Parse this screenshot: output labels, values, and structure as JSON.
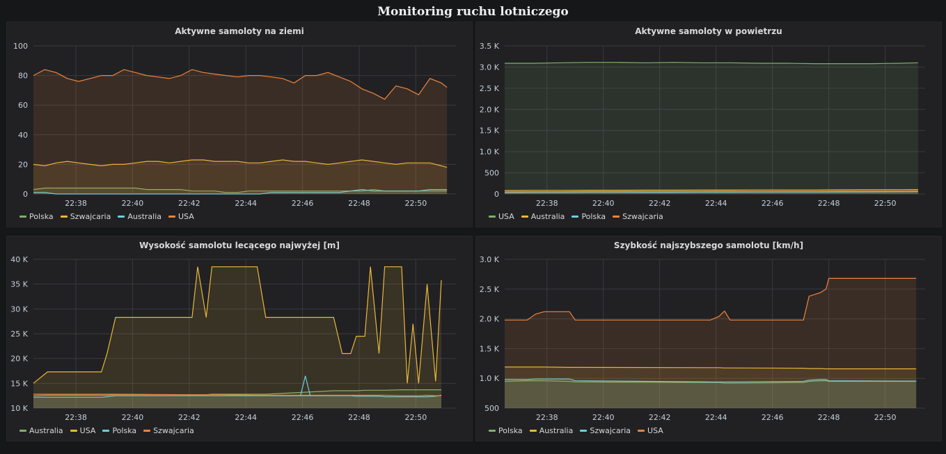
{
  "dashboard": {
    "title": "Monitoring ruchu lotniczego"
  },
  "chart_data": [
    {
      "type": "line",
      "title": "Aktywne samoloty na ziemi",
      "xlabel": "",
      "ylabel": "",
      "x": [
        "22:36:30",
        "22:36:54",
        "22:37:18",
        "22:37:42",
        "22:38:06",
        "22:38:30",
        "22:38:54",
        "22:39:18",
        "22:39:42",
        "22:40:06",
        "22:40:30",
        "22:40:54",
        "22:41:18",
        "22:41:42",
        "22:42:06",
        "22:42:30",
        "22:42:54",
        "22:43:18",
        "22:43:42",
        "22:44:06",
        "22:44:30",
        "22:44:54",
        "22:45:18",
        "22:45:42",
        "22:46:06",
        "22:46:30",
        "22:46:54",
        "22:47:18",
        "22:47:42",
        "22:48:06",
        "22:48:30",
        "22:48:54",
        "22:49:18",
        "22:49:42",
        "22:50:06",
        "22:50:30",
        "22:50:54",
        "22:51:06"
      ],
      "xticks": [
        "22:38",
        "22:40",
        "22:42",
        "22:44",
        "22:46",
        "22:48",
        "22:50"
      ],
      "xlim": [
        "22:36:30",
        "22:51:25"
      ],
      "ylim": [
        0,
        100
      ],
      "yticks": [
        0,
        20,
        40,
        60,
        80,
        100
      ],
      "ytick_labels": [
        "0",
        "20",
        "40",
        "60",
        "80",
        "100"
      ],
      "series": [
        {
          "name": "Polska",
          "color": "#7eb26d",
          "values": [
            3,
            4,
            4,
            4,
            4,
            4,
            4,
            4,
            4,
            4,
            3,
            3,
            3,
            3,
            2,
            2,
            2,
            1,
            1,
            2,
            2,
            2,
            2,
            2,
            2,
            2,
            2,
            2,
            2,
            2,
            3,
            2,
            2,
            2,
            2,
            2,
            2,
            2
          ]
        },
        {
          "name": "Szwajcaria",
          "color": "#eab839",
          "values": [
            20,
            19,
            21,
            22,
            21,
            20,
            19,
            20,
            20,
            21,
            22,
            22,
            21,
            22,
            23,
            23,
            22,
            22,
            22,
            21,
            21,
            22,
            23,
            22,
            22,
            21,
            20,
            21,
            22,
            23,
            22,
            21,
            20,
            21,
            21,
            21,
            19,
            18
          ]
        },
        {
          "name": "Australia",
          "color": "#6ed0e0",
          "values": [
            1,
            1,
            0,
            0,
            0,
            0,
            0,
            0,
            0,
            0,
            0,
            0,
            0,
            0,
            0,
            0,
            0,
            0,
            0,
            0,
            0,
            1,
            1,
            1,
            1,
            1,
            1,
            1,
            2,
            3,
            2,
            2,
            2,
            2,
            2,
            3,
            3,
            3
          ]
        },
        {
          "name": "USA",
          "color": "#ef843c",
          "values": [
            80,
            84,
            82,
            78,
            76,
            78,
            80,
            80,
            84,
            82,
            80,
            79,
            78,
            80,
            84,
            82,
            81,
            80,
            79,
            80,
            80,
            79,
            78,
            75,
            80,
            80,
            82,
            79,
            76,
            71,
            68,
            64,
            73,
            71,
            67,
            78,
            75,
            72
          ]
        }
      ]
    },
    {
      "type": "line",
      "title": "Aktywne samoloty w powietrzu",
      "xlabel": "",
      "ylabel": "",
      "x": [
        "22:36:30",
        "22:37:30",
        "22:38:30",
        "22:39:30",
        "22:40:30",
        "22:41:30",
        "22:42:30",
        "22:43:30",
        "22:44:30",
        "22:45:30",
        "22:46:30",
        "22:47:30",
        "22:48:30",
        "22:49:30",
        "22:50:30",
        "22:51:10"
      ],
      "xticks": [
        "22:38",
        "22:40",
        "22:42",
        "22:44",
        "22:46",
        "22:48",
        "22:50"
      ],
      "xlim": [
        "22:36:30",
        "22:51:25"
      ],
      "ylim": [
        0,
        3500
      ],
      "yticks": [
        0,
        500,
        1000,
        1500,
        2000,
        2500,
        3000,
        3500
      ],
      "ytick_labels": [
        "0",
        "500",
        "1.0 K",
        "1.5 K",
        "2.0 K",
        "2.5 K",
        "3.0 K",
        "3.5 K"
      ],
      "series": [
        {
          "name": "USA",
          "color": "#7eb26d",
          "values": [
            3090,
            3090,
            3100,
            3110,
            3110,
            3100,
            3110,
            3100,
            3100,
            3090,
            3090,
            3080,
            3080,
            3080,
            3090,
            3100
          ]
        },
        {
          "name": "Australia",
          "color": "#eab839",
          "values": [
            80,
            85,
            85,
            88,
            88,
            90,
            90,
            92,
            92,
            95,
            95,
            95,
            98,
            100,
            102,
            105
          ]
        },
        {
          "name": "Polska",
          "color": "#6ed0e0",
          "values": [
            30,
            35,
            35,
            38,
            38,
            40,
            40,
            42,
            42,
            45,
            45,
            45,
            48,
            50,
            52,
            55
          ]
        },
        {
          "name": "Szwajcaria",
          "color": "#ef843c",
          "values": [
            50,
            55,
            55,
            58,
            58,
            60,
            60,
            60,
            62,
            62,
            64,
            64,
            66,
            66,
            68,
            70
          ]
        }
      ]
    },
    {
      "type": "line",
      "title": "Wysokość samolotu lecącego najwyżej [m]",
      "xlabel": "",
      "ylabel": "",
      "x": [
        "22:36:30",
        "22:37:00",
        "22:38:54",
        "22:39:06",
        "22:39:24",
        "22:42:06",
        "22:42:18",
        "22:42:36",
        "22:42:48",
        "22:43:06",
        "22:44:24",
        "22:44:42",
        "22:47:06",
        "22:47:24",
        "22:47:42",
        "22:47:54",
        "22:48:12",
        "22:48:24",
        "22:48:42",
        "22:48:54",
        "22:49:30",
        "22:49:42",
        "22:49:54",
        "22:50:06",
        "22:50:24",
        "22:50:42",
        "22:50:54"
      ],
      "xticks": [
        "22:38",
        "22:40",
        "22:42",
        "22:44",
        "22:46",
        "22:48",
        "22:50"
      ],
      "xlim": [
        "22:36:30",
        "22:51:25"
      ],
      "ylim": [
        10000,
        40000
      ],
      "yticks": [
        10000,
        15000,
        20000,
        25000,
        30000,
        35000,
        40000
      ],
      "ytick_labels": [
        "10 K",
        "15 K",
        "20 K",
        "25 K",
        "30 K",
        "35 K",
        "40 K"
      ],
      "series": [
        {
          "name": "Australia",
          "color": "#7eb26d",
          "values": [
            12500,
            12600,
            12600,
            12600,
            12700,
            12700,
            12700,
            12700,
            12800,
            12800,
            12800,
            12800,
            13500,
            13500,
            13500,
            13500,
            13600,
            13600,
            13600,
            13600,
            13700,
            13700,
            13700,
            13700,
            13700,
            13700,
            13700
          ]
        },
        {
          "name": "USA",
          "color": "#eab839",
          "values": [
            15000,
            17300,
            17300,
            21000,
            28300,
            28300,
            38500,
            28300,
            38500,
            38500,
            38500,
            28300,
            28300,
            21000,
            21000,
            24500,
            24500,
            38500,
            21000,
            38500,
            38500,
            15000,
            27000,
            15000,
            35000,
            15400,
            35800
          ]
        },
        {
          "name": "Polska",
          "color": "#6ed0e0",
          "values": [
            12200,
            12200,
            12200,
            12300,
            12500,
            12500,
            12500,
            12500,
            12500,
            12500,
            12500,
            12500,
            12500,
            12500,
            12500,
            12400,
            12400,
            12400,
            12400,
            12300,
            12300,
            12300,
            12300,
            12300,
            12300,
            12400,
            12600
          ]
        },
        {
          "name": "Szwajcaria",
          "color": "#ef843c",
          "values": [
            12800,
            12800,
            12800,
            12800,
            12800,
            12700,
            12700,
            12700,
            12700,
            12700,
            12600,
            12600,
            12600,
            12600,
            12600,
            12600,
            12600,
            12600,
            12600,
            12600,
            12500,
            12500,
            12500,
            12500,
            12600,
            12500,
            12500
          ]
        }
      ],
      "annotations": [
        {
          "series": "Polska",
          "x": "22:46:06",
          "y": 16500
        }
      ]
    },
    {
      "type": "line",
      "title": "Szybkość najszybszego samolotu [km/h]",
      "xlabel": "",
      "ylabel": "",
      "x": [
        "22:36:30",
        "22:37:18",
        "22:37:36",
        "22:37:54",
        "22:38:48",
        "22:39:00",
        "22:43:48",
        "22:44:06",
        "22:44:18",
        "22:44:30",
        "22:47:06",
        "22:47:18",
        "22:47:42",
        "22:47:54",
        "22:48:00",
        "22:51:06"
      ],
      "xticks": [
        "22:38",
        "22:40",
        "22:42",
        "22:44",
        "22:46",
        "22:48",
        "22:50"
      ],
      "xlim": [
        "22:36:30",
        "22:51:25"
      ],
      "ylim": [
        500,
        3000
      ],
      "yticks": [
        500,
        1000,
        1500,
        2000,
        2500,
        3000
      ],
      "ytick_labels": [
        "500",
        "1.0 K",
        "1.5 K",
        "2.0 K",
        "2.5 K",
        "3.0 K"
      ],
      "series": [
        {
          "name": "Polska",
          "color": "#7eb26d",
          "values": [
            950,
            960,
            960,
            960,
            950,
            940,
            930,
            930,
            920,
            920,
            930,
            950,
            960,
            960,
            950,
            950
          ]
        },
        {
          "name": "Australia",
          "color": "#eab839",
          "values": [
            1190,
            1190,
            1190,
            1190,
            1185,
            1185,
            1180,
            1180,
            1175,
            1175,
            1170,
            1165,
            1165,
            1160,
            1160,
            1160
          ]
        },
        {
          "name": "Szwajcaria",
          "color": "#6ed0e0",
          "values": [
            980,
            980,
            990,
            990,
            990,
            960,
            940,
            940,
            940,
            940,
            950,
            970,
            980,
            980,
            960,
            955
          ]
        },
        {
          "name": "USA",
          "color": "#ef843c",
          "values": [
            1980,
            1980,
            2080,
            2120,
            2120,
            1980,
            1980,
            2040,
            2130,
            1980,
            1980,
            2380,
            2440,
            2500,
            2680,
            2680
          ]
        }
      ]
    }
  ]
}
